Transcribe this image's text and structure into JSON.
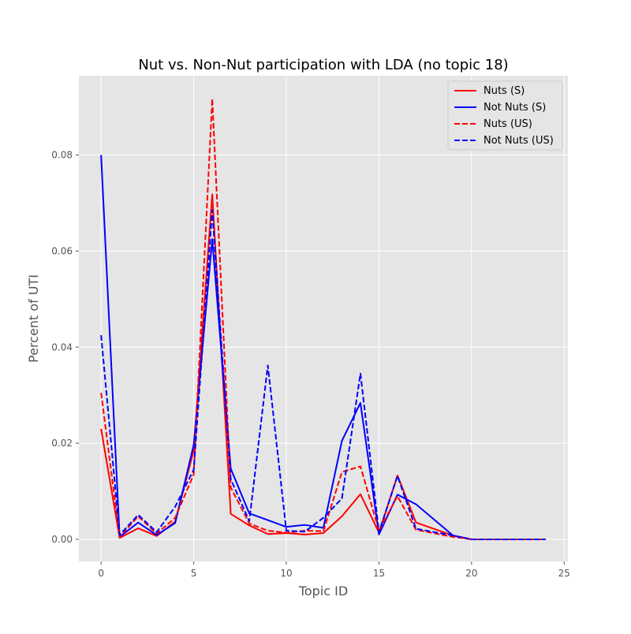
{
  "chart_data": {
    "type": "line",
    "title": "Nut vs. Non-Nut participation with LDA (no topic 18)",
    "xlabel": "Topic ID",
    "ylabel": "Percent of UTI",
    "xlim": [
      -1.2,
      25.2
    ],
    "ylim": [
      -0.0046,
      0.0965
    ],
    "xticks": [
      0,
      5,
      10,
      15,
      20,
      25
    ],
    "xtick_labels": [
      "0",
      "5",
      "10",
      "15",
      "20",
      "25"
    ],
    "yticks": [
      0.0,
      0.02,
      0.04,
      0.06,
      0.08
    ],
    "ytick_labels": [
      "0.00",
      "0.02",
      "0.04",
      "0.06",
      "0.08"
    ],
    "grid": true,
    "legend_position": "top-right",
    "x": [
      0,
      1,
      2,
      3,
      4,
      5,
      6,
      7,
      8,
      9,
      10,
      11,
      12,
      13,
      14,
      15,
      16,
      17,
      19,
      20,
      21,
      22,
      23,
      24
    ],
    "series": [
      {
        "name": "Nuts (S)",
        "color": "#ff0000",
        "dash": "solid",
        "values": [
          0.023,
          0.0003,
          0.0023,
          0.0007,
          0.0037,
          0.0185,
          0.0718,
          0.0053,
          0.0029,
          0.0011,
          0.0013,
          0.001,
          0.0013,
          0.0048,
          0.0094,
          0.0014,
          0.0133,
          0.0035,
          0.0008,
          0.0,
          0.0,
          0.0,
          0.0,
          0.0
        ]
      },
      {
        "name": "Not Nuts (S)",
        "color": "#0000ff",
        "dash": "solid",
        "values": [
          0.08,
          0.0005,
          0.0035,
          0.0009,
          0.0034,
          0.0197,
          0.0625,
          0.0147,
          0.0054,
          0.004,
          0.0026,
          0.003,
          0.0024,
          0.0205,
          0.0284,
          0.001,
          0.0093,
          0.0073,
          0.0008,
          0.0,
          0.0,
          0.0,
          0.0,
          0.0
        ]
      },
      {
        "name": "Nuts (US)",
        "color": "#ff0000",
        "dash": "dashed",
        "values": [
          0.0305,
          0.0005,
          0.0048,
          0.0012,
          0.0045,
          0.0135,
          0.0917,
          0.0108,
          0.0033,
          0.0018,
          0.0014,
          0.0018,
          0.0017,
          0.014,
          0.0152,
          0.0018,
          0.009,
          0.002,
          0.0005,
          0.0,
          0.0,
          0.0,
          0.0,
          0.0
        ]
      },
      {
        "name": "Not Nuts (US)",
        "color": "#0000ff",
        "dash": "dashed",
        "values": [
          0.0425,
          0.0009,
          0.0051,
          0.0015,
          0.0068,
          0.0145,
          0.0685,
          0.0125,
          0.0038,
          0.0362,
          0.0018,
          0.0016,
          0.0045,
          0.0085,
          0.0345,
          0.0015,
          0.0132,
          0.0022,
          0.0008,
          0.0,
          0.0,
          0.0,
          0.0,
          0.0
        ]
      }
    ]
  }
}
